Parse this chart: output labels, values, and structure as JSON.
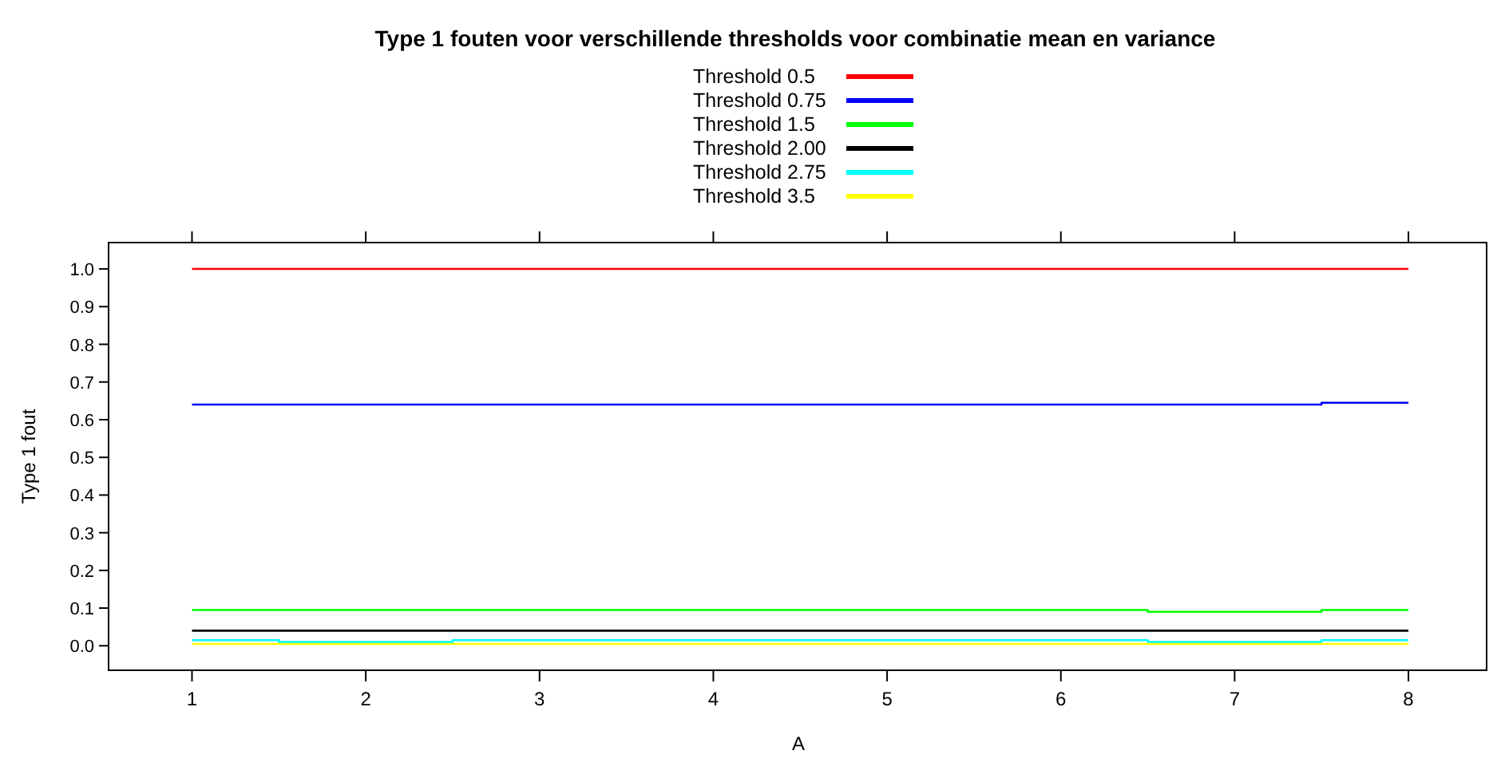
{
  "chart_data": {
    "type": "step",
    "title": "Type 1 fouten voor verschillende thresholds voor combinatie mean en variance",
    "xlabel": "A",
    "ylabel": "Type 1 fout",
    "x": [
      1,
      2,
      3,
      4,
      5,
      6,
      7,
      8
    ],
    "series": [
      {
        "name": "Threshold 0.5",
        "color": "#ff0000",
        "values": [
          1,
          1,
          1,
          1,
          1,
          1,
          1,
          1
        ]
      },
      {
        "name": "Threshold 0.75",
        "color": "#0000ff",
        "values": [
          0.64,
          0.64,
          0.64,
          0.64,
          0.64,
          0.64,
          0.64,
          0.645
        ]
      },
      {
        "name": "Threshold 1.5",
        "color": "#00ff00",
        "values": [
          0.095,
          0.095,
          0.095,
          0.095,
          0.095,
          0.095,
          0.09,
          0.095
        ]
      },
      {
        "name": "Threshold 2.00",
        "color": "#000000",
        "values": [
          0.04,
          0.04,
          0.04,
          0.04,
          0.04,
          0.04,
          0.04,
          0.04
        ]
      },
      {
        "name": "Threshold 2.75",
        "color": "#00ffff",
        "values": [
          0.015,
          0.01,
          0.015,
          0.015,
          0.015,
          0.015,
          0.01,
          0.015
        ]
      },
      {
        "name": "Threshold 3.5",
        "color": "#ffff00",
        "values": [
          0.005,
          0.005,
          0.005,
          0.005,
          0.005,
          0.005,
          0.005,
          0.005
        ]
      }
    ],
    "xlim": [
      0.52,
      8.45
    ],
    "ylim": [
      -0.065,
      1.07
    ],
    "xticks": [
      1,
      2,
      3,
      4,
      5,
      6,
      7,
      8
    ],
    "yticks": [
      {
        "value": 0,
        "label": "0.0"
      },
      0.1,
      0.2,
      0.3,
      0.4,
      0.5,
      0.6,
      0.7,
      0.8,
      0.9,
      {
        "value": 1,
        "label": "1.0"
      }
    ],
    "legend": "top",
    "grid": false
  }
}
